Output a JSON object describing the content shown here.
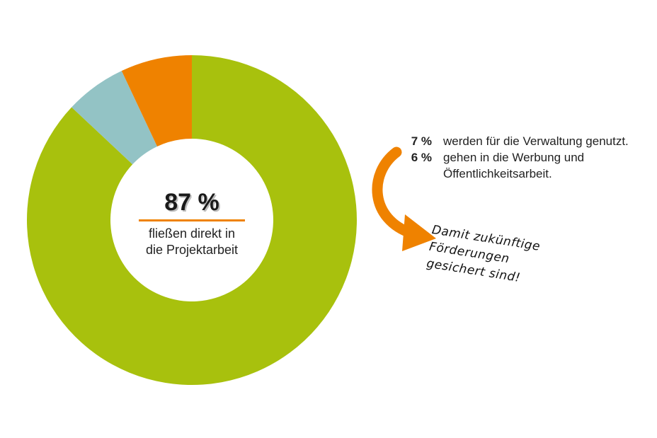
{
  "chart_data": {
    "type": "pie",
    "donut": true,
    "slices": [
      {
        "name": "Projektarbeit",
        "value": 87,
        "color": "#a8c10d"
      },
      {
        "name": "Werbung und Öffentlichkeitsarbeit",
        "value": 6,
        "color": "#93c3c5"
      },
      {
        "name": "Verwaltung",
        "value": 7,
        "color": "#ef8200"
      }
    ],
    "center_label": {
      "value": "87 %",
      "text_line1": "fließen direkt in",
      "text_line2": "die Projektarbeit"
    }
  },
  "legend": [
    {
      "pct": "7 %",
      "text": "werden für die Verwaltung genutzt."
    },
    {
      "pct": "6 %",
      "text": "gehen in die Werbung und Öffentlichkeitsarbeit."
    }
  ],
  "note": {
    "line1": "Damit zukünftige",
    "line2": "Förderungen",
    "line3": "gesichert sind!"
  },
  "colors": {
    "green": "#a8c10d",
    "blue": "#93c3c5",
    "orange": "#ef8200"
  }
}
